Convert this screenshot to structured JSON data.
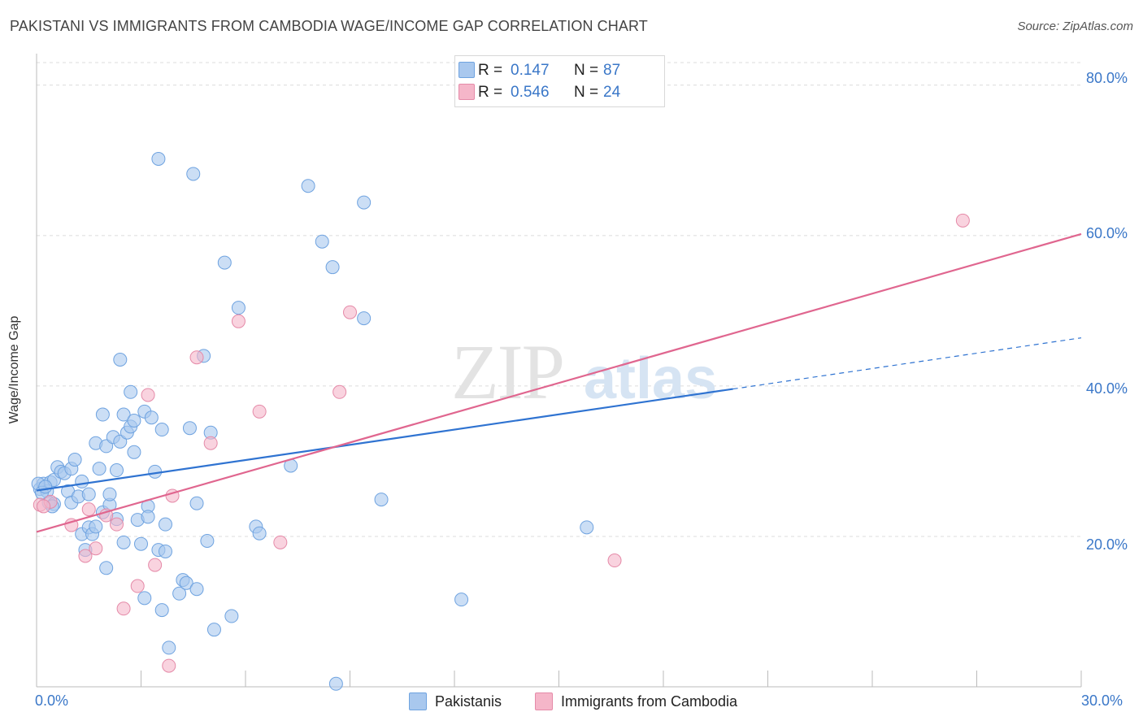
{
  "title": "PAKISTANI VS IMMIGRANTS FROM CAMBODIA WAGE/INCOME GAP CORRELATION CHART",
  "source": "Source: ZipAtlas.com",
  "watermark": {
    "zip": "ZIP",
    "atlas": "atlas"
  },
  "legend": {
    "rows": [
      {
        "r_label": "R =",
        "r_value": "0.147",
        "n_label": "N =",
        "n_value": "87",
        "color": "#a9c8ee"
      },
      {
        "r_label": "R =",
        "r_value": "0.546",
        "n_label": "N =",
        "n_value": "24",
        "color": "#f5b6c9"
      }
    ]
  },
  "bottom_legend": {
    "items": [
      {
        "label": "Pakistanis",
        "color": "#a9c8ee"
      },
      {
        "label": "Immigrants from Cambodia",
        "color": "#f5b6c9"
      }
    ]
  },
  "axes": {
    "x_min_label": "0.0%",
    "x_max_label": "30.0%",
    "y_ticks": [
      "20.0%",
      "40.0%",
      "60.0%",
      "80.0%"
    ]
  },
  "chart_data": {
    "type": "scatter",
    "title": "PAKISTANI VS IMMIGRANTS FROM CAMBODIA WAGE/INCOME GAP CORRELATION CHART",
    "xlabel": "",
    "ylabel": "Wage/Income Gap",
    "xlim": [
      0,
      30
    ],
    "ylim": [
      0,
      83
    ],
    "grid": true,
    "legend_placement": "top-center",
    "series": [
      {
        "name": "Pakistanis",
        "color": "#6fa3e0",
        "fill": "#a9c8ee",
        "trend": {
          "x0": 0,
          "y0": 26.1,
          "x1": 20,
          "y1": 39.6,
          "dash_to_x": 30,
          "dash_to_y": 46.4
        },
        "points": [
          [
            0.1,
            26.3
          ],
          [
            0.2,
            27.0
          ],
          [
            0.3,
            26.0
          ],
          [
            0.35,
            24.5
          ],
          [
            0.4,
            27.2
          ],
          [
            0.5,
            27.5
          ],
          [
            0.5,
            24.3
          ],
          [
            0.6,
            29.2
          ],
          [
            0.7,
            28.6
          ],
          [
            0.8,
            28.4
          ],
          [
            0.9,
            26.0
          ],
          [
            1.0,
            24.5
          ],
          [
            1.0,
            29.0
          ],
          [
            1.1,
            30.2
          ],
          [
            1.2,
            25.3
          ],
          [
            1.3,
            27.3
          ],
          [
            1.3,
            20.3
          ],
          [
            1.4,
            18.2
          ],
          [
            1.5,
            25.6
          ],
          [
            1.5,
            21.2
          ],
          [
            1.6,
            20.3
          ],
          [
            1.7,
            21.3
          ],
          [
            1.7,
            32.4
          ],
          [
            1.8,
            29.0
          ],
          [
            1.9,
            23.2
          ],
          [
            1.9,
            36.2
          ],
          [
            2.0,
            32.0
          ],
          [
            2.0,
            15.8
          ],
          [
            2.1,
            24.2
          ],
          [
            2.1,
            25.6
          ],
          [
            2.2,
            33.2
          ],
          [
            2.3,
            28.8
          ],
          [
            2.3,
            22.3
          ],
          [
            2.4,
            32.6
          ],
          [
            2.4,
            43.5
          ],
          [
            2.5,
            19.2
          ],
          [
            2.5,
            36.2
          ],
          [
            2.6,
            33.8
          ],
          [
            2.7,
            34.6
          ],
          [
            2.7,
            39.2
          ],
          [
            2.8,
            35.4
          ],
          [
            2.8,
            31.2
          ],
          [
            2.9,
            22.2
          ],
          [
            3.0,
            19.0
          ],
          [
            3.1,
            11.8
          ],
          [
            3.1,
            36.6
          ],
          [
            3.2,
            24.0
          ],
          [
            3.2,
            22.6
          ],
          [
            3.3,
            35.8
          ],
          [
            3.4,
            28.6
          ],
          [
            3.5,
            18.2
          ],
          [
            3.6,
            10.2
          ],
          [
            3.6,
            34.2
          ],
          [
            3.7,
            18.0
          ],
          [
            3.7,
            21.6
          ],
          [
            3.8,
            5.2
          ],
          [
            3.5,
            70.2
          ],
          [
            4.1,
            12.4
          ],
          [
            4.2,
            14.2
          ],
          [
            4.3,
            13.8
          ],
          [
            4.4,
            34.4
          ],
          [
            4.5,
            68.2
          ],
          [
            4.6,
            24.4
          ],
          [
            4.6,
            13.0
          ],
          [
            4.8,
            44.0
          ],
          [
            4.9,
            19.4
          ],
          [
            5.0,
            33.8
          ],
          [
            5.1,
            7.6
          ],
          [
            5.4,
            56.4
          ],
          [
            5.6,
            9.4
          ],
          [
            5.8,
            50.4
          ],
          [
            6.3,
            21.3
          ],
          [
            6.4,
            20.4
          ],
          [
            7.3,
            29.4
          ],
          [
            7.8,
            66.6
          ],
          [
            8.2,
            59.2
          ],
          [
            8.5,
            55.8
          ],
          [
            8.6,
            0.4
          ],
          [
            9.4,
            49.0
          ],
          [
            9.4,
            64.4
          ],
          [
            9.9,
            24.9
          ],
          [
            12.2,
            11.6
          ],
          [
            15.8,
            21.2
          ],
          [
            0.05,
            27.0
          ],
          [
            0.15,
            25.8
          ],
          [
            0.25,
            26.6
          ],
          [
            0.45,
            24.0
          ]
        ]
      },
      {
        "name": "Immigrants from Cambodia",
        "color": "#e58aa8",
        "fill": "#f5b6c9",
        "trend": {
          "x0": 0,
          "y0": 20.6,
          "x1": 30,
          "y1": 60.2
        },
        "points": [
          [
            0.1,
            24.2
          ],
          [
            0.4,
            24.6
          ],
          [
            1.0,
            21.5
          ],
          [
            1.4,
            17.4
          ],
          [
            1.5,
            23.6
          ],
          [
            1.7,
            18.4
          ],
          [
            2.0,
            22.8
          ],
          [
            2.3,
            21.6
          ],
          [
            2.5,
            10.4
          ],
          [
            2.9,
            13.4
          ],
          [
            3.2,
            38.8
          ],
          [
            3.4,
            16.2
          ],
          [
            3.8,
            2.8
          ],
          [
            3.9,
            25.4
          ],
          [
            4.6,
            43.8
          ],
          [
            5.0,
            32.4
          ],
          [
            5.8,
            48.6
          ],
          [
            6.4,
            36.6
          ],
          [
            7.0,
            19.2
          ],
          [
            8.7,
            39.2
          ],
          [
            9.0,
            49.8
          ],
          [
            16.6,
            16.8
          ],
          [
            26.6,
            62.0
          ],
          [
            0.2,
            24.0
          ]
        ]
      }
    ]
  }
}
